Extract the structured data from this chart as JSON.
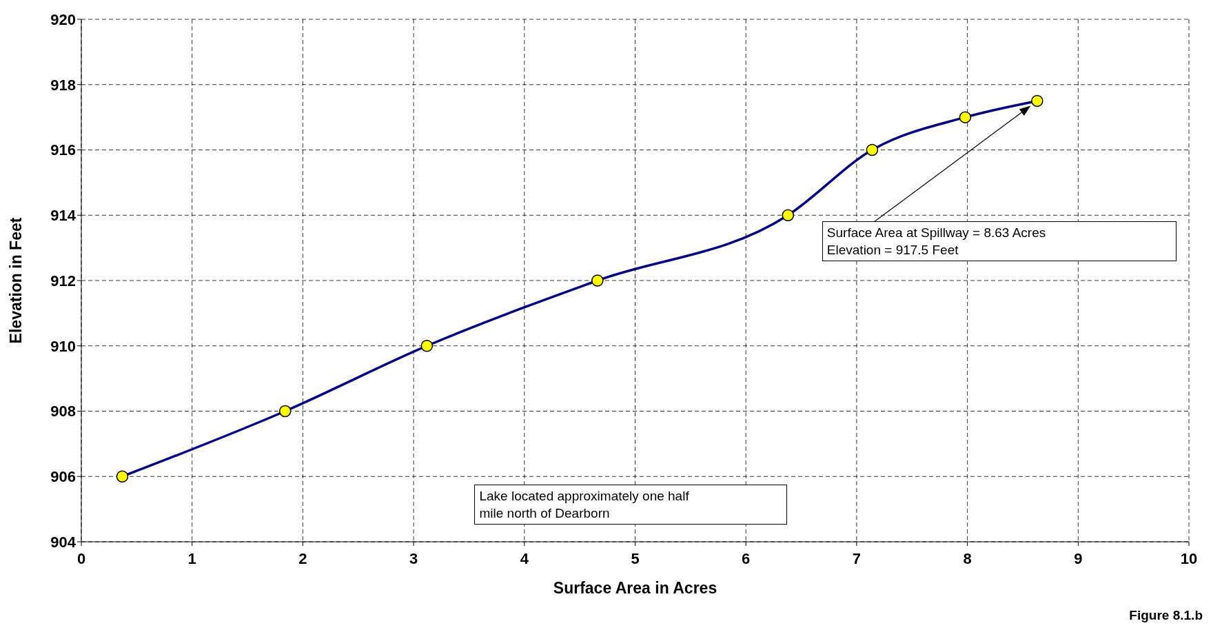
{
  "chart_data": {
    "type": "line",
    "xlabel": "Surface Area in Acres",
    "ylabel": "Elevation in Feet",
    "x": [
      0.37,
      1.84,
      3.12,
      4.66,
      6.38,
      7.14,
      7.98,
      8.63
    ],
    "series": [
      {
        "color": "#000080",
        "values": [
          906,
          908,
          910,
          912,
          914,
          916,
          917,
          917.5
        ]
      }
    ],
    "xlim": [
      0,
      10
    ],
    "xticks": [
      0,
      1,
      2,
      3,
      4,
      5,
      6,
      7,
      8,
      9,
      10
    ],
    "ylim": [
      904,
      920
    ],
    "yticks": [
      904,
      906,
      908,
      910,
      912,
      914,
      916,
      918,
      920
    ],
    "grid": true,
    "marker": "circle",
    "line_style": "solid",
    "legend": false,
    "annotations": [
      "Surface Area at Spillway = 8.63 Acres\nElevation = 917.5 Feet",
      "Lake located approximately one half\nmile north of Dearborn",
      "Figure 8.1.b"
    ]
  }
}
